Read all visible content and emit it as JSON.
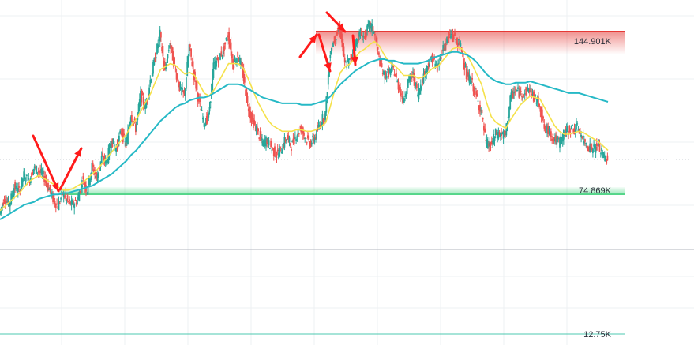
{
  "chart_data": {
    "type": "line",
    "title": "",
    "xlabel": "",
    "ylabel": "",
    "grid": true,
    "legend": "none",
    "series": [
      {
        "values": [
          4,
          15,
          10,
          22,
          19,
          30,
          26,
          35,
          33,
          30,
          22,
          14,
          9,
          18,
          12,
          10,
          13,
          27,
          20,
          36,
          28,
          42,
          39,
          54,
          48,
          60,
          50,
          72,
          62,
          85,
          76,
          95,
          110,
          126,
          100,
          120,
          104,
          90,
          84,
          118,
          98,
          80,
          66,
          70,
          104,
          110,
          115,
          126,
          105,
          112,
          100,
          78,
          67,
          60,
          52,
          54,
          48,
          44,
          48,
          56,
          50,
          58,
          62,
          55,
          52,
          57,
          66,
          72,
          115,
          124,
          130,
          105,
          108,
          118,
          126,
          124,
          132,
          128,
          110,
          98,
          100,
          102,
          91,
          81,
          94,
          98,
          85,
          96,
          105,
          110,
          102,
          115,
          122,
          126,
          121,
          116,
          98,
          94,
          84,
          74,
          52,
          50,
          58,
          58,
          57,
          82,
          88,
          86,
          86,
          89,
          82,
          79,
          62,
          60,
          55,
          52,
          58,
          61,
          62,
          62,
          54,
          50,
          48,
          50,
          44,
          40
        ]
      },
      {
        "values": [
          6,
          9,
          12,
          15,
          18,
          22,
          26,
          28,
          30,
          28,
          26,
          24,
          22,
          20,
          20,
          21,
          23,
          25,
          28,
          31,
          34,
          38,
          42,
          46,
          50,
          54,
          58,
          64,
          68,
          74,
          80,
          86,
          94,
          102,
          104,
          106,
          105,
          102,
          99,
          100,
          98,
          92,
          86,
          84,
          88,
          94,
          100,
          106,
          106,
          106,
          103,
          96,
          88,
          80,
          74,
          68,
          64,
          62,
          60,
          60,
          60,
          61,
          61,
          60,
          60,
          61,
          63,
          66,
          78,
          90,
          100,
          104,
          106,
          110,
          114,
          116,
          119,
          121,
          118,
          112,
          107,
          105,
          102,
          98,
          98,
          98,
          96,
          97,
          100,
          103,
          104,
          108,
          112,
          116,
          117,
          116,
          112,
          106,
          99,
          92,
          80,
          70,
          66,
          64,
          62,
          68,
          73,
          78,
          81,
          84,
          83,
          82,
          76,
          70,
          64,
          60,
          58,
          58,
          59,
          60,
          59,
          57,
          55,
          53,
          50,
          47
        ]
      },
      {
        "values": [
          0,
          2,
          4,
          6,
          8,
          10,
          11,
          12,
          14,
          15,
          16,
          17,
          17,
          18,
          18,
          19,
          20,
          21,
          22,
          23,
          25,
          27,
          29,
          31,
          34,
          37,
          40,
          44,
          47,
          51,
          55,
          59,
          63,
          67,
          70,
          73,
          76,
          78,
          79,
          81,
          82,
          83,
          83,
          84,
          86,
          88,
          90,
          92,
          92,
          92,
          91,
          89,
          87,
          85,
          83,
          82,
          81,
          80,
          79,
          79,
          79,
          79,
          78,
          78,
          78,
          79,
          80,
          81,
          84,
          88,
          92,
          95,
          98,
          101,
          103,
          105,
          107,
          108,
          109,
          109,
          108,
          108,
          107,
          106,
          106,
          106,
          106,
          107,
          108,
          110,
          111,
          112,
          113,
          114,
          114,
          113,
          112,
          110,
          107,
          103,
          99,
          96,
          94,
          93,
          92,
          92,
          93,
          93,
          93,
          94,
          93,
          92,
          91,
          90,
          89,
          88,
          87,
          86,
          86,
          86,
          85,
          84,
          83,
          82,
          81,
          80
        ]
      }
    ],
    "levels": [
      {
        "label": "144.901K",
        "value": 144.901
      },
      {
        "label": "74.869K",
        "value": 74.869
      },
      {
        "label": "12.75K",
        "value": 12.75
      }
    ],
    "colors": {
      "price_up": "#26a69a",
      "price_down": "#ef5350",
      "ma_fast": "#f5e14a",
      "ma_slow": "#26b9c6",
      "resistance": "#e53935",
      "support": "#3fd07a",
      "arrow": "#ff1a1a",
      "axis_line": "#b2b5be",
      "grid": "#eef0f3"
    },
    "icons": [
      "arrow-down",
      "arrow-up",
      "arrow-down-right"
    ]
  }
}
